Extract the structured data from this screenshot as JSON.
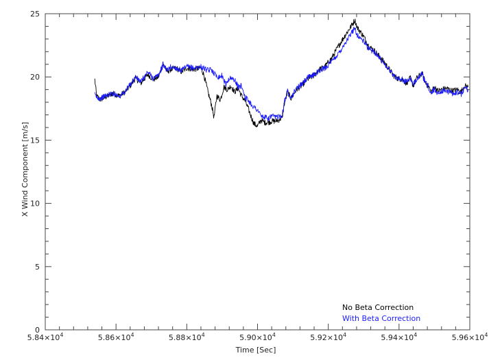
{
  "chart_data": {
    "type": "line",
    "title": "",
    "xlabel": "Time [Sec]",
    "ylabel": "X Wind Component [m/s]",
    "xlim": [
      58400,
      59600
    ],
    "ylim": [
      0,
      25
    ],
    "x_ticks": [
      {
        "value": 58400,
        "mantissa": "5.84",
        "power": "4"
      },
      {
        "value": 58600,
        "mantissa": "5.86",
        "power": "4"
      },
      {
        "value": 58800,
        "mantissa": "5.88",
        "power": "4"
      },
      {
        "value": 59000,
        "mantissa": "5.90",
        "power": "4"
      },
      {
        "value": 59200,
        "mantissa": "5.92",
        "power": "4"
      },
      {
        "value": 59400,
        "mantissa": "5.94",
        "power": "4"
      },
      {
        "value": 59600,
        "mantissa": "5.96",
        "power": "4"
      }
    ],
    "y_ticks": [
      0,
      5,
      10,
      15,
      20,
      25
    ],
    "grid": false,
    "legend_position": "bottom-right",
    "series": [
      {
        "name": "No Beta Correction",
        "color": "#000000",
        "x": [
          58540,
          58545,
          58555,
          58570,
          58590,
          58610,
          58625,
          58640,
          58655,
          58670,
          58690,
          58705,
          58720,
          58733,
          58745,
          58755,
          58770,
          58785,
          58800,
          58820,
          58840,
          58848,
          58860,
          58870,
          58877,
          58885,
          58895,
          58905,
          58915,
          58925,
          58935,
          58945,
          58955,
          58965,
          58975,
          58980,
          58990,
          59000,
          59010,
          59020,
          59030,
          59040,
          59050,
          59060,
          59070,
          59075,
          59080,
          59085,
          59095,
          59110,
          59125,
          59140,
          59160,
          59175,
          59190,
          59210,
          59230,
          59250,
          59262,
          59275,
          59282,
          59290,
          59300,
          59315,
          59330,
          59345,
          59360,
          59375,
          59385,
          59395,
          59410,
          59420,
          59432,
          59440,
          59450,
          59465,
          59475,
          59485,
          59490,
          59500,
          59510,
          59520,
          59535,
          59550,
          59565,
          59575,
          59585,
          59595
        ],
        "y": [
          19.8,
          18.5,
          18.2,
          18.4,
          18.7,
          18.5,
          18.8,
          19.3,
          19.9,
          19.5,
          20.2,
          19.8,
          20.0,
          21.0,
          20.4,
          20.6,
          20.7,
          20.4,
          20.7,
          20.6,
          20.7,
          20.2,
          18.8,
          17.8,
          16.8,
          18.5,
          18.2,
          19.2,
          19.0,
          19.3,
          18.8,
          19.1,
          18.5,
          18.1,
          17.4,
          17.0,
          16.3,
          16.1,
          16.6,
          16.4,
          16.4,
          16.5,
          16.5,
          16.6,
          16.8,
          17.8,
          18.3,
          18.8,
          18.3,
          19.0,
          19.3,
          19.8,
          20.1,
          20.6,
          20.8,
          21.5,
          22.5,
          23.4,
          23.9,
          24.5,
          23.9,
          23.6,
          23.2,
          22.4,
          22.1,
          21.6,
          21.1,
          20.5,
          20.1,
          19.9,
          19.8,
          19.5,
          19.9,
          19.3,
          19.9,
          20.3,
          19.5,
          19.2,
          18.8,
          19.2,
          18.9,
          19.0,
          19.1,
          18.9,
          19.0,
          18.8,
          19.3,
          19.2
        ]
      },
      {
        "name": "With Beta Correction",
        "color": "#1a1aff",
        "x": [
          58540,
          58545,
          58555,
          58570,
          58590,
          58610,
          58625,
          58640,
          58655,
          58670,
          58690,
          58705,
          58720,
          58733,
          58745,
          58755,
          58770,
          58785,
          58800,
          58820,
          58840,
          58860,
          58870,
          58880,
          58890,
          58900,
          58910,
          58920,
          58935,
          58945,
          58955,
          58965,
          58975,
          58990,
          59000,
          59010,
          59020,
          59030,
          59040,
          59050,
          59060,
          59070,
          59075,
          59080,
          59085,
          59095,
          59110,
          59125,
          59140,
          59160,
          59175,
          59190,
          59210,
          59230,
          59250,
          59262,
          59275,
          59282,
          59290,
          59300,
          59315,
          59330,
          59345,
          59360,
          59375,
          59385,
          59395,
          59410,
          59420,
          59432,
          59440,
          59450,
          59465,
          59475,
          59485,
          59490,
          59500,
          59510,
          59520,
          59535,
          59550,
          59565,
          59575,
          59585,
          59595
        ],
        "y": [
          18.6,
          18.4,
          18.3,
          18.5,
          18.7,
          18.5,
          18.8,
          19.4,
          20.0,
          19.6,
          20.4,
          19.9,
          20.1,
          21.0,
          20.5,
          20.8,
          20.7,
          20.5,
          20.8,
          20.7,
          20.8,
          20.5,
          20.6,
          20.2,
          20.0,
          20.1,
          19.4,
          19.9,
          19.8,
          19.2,
          19.3,
          18.4,
          18.1,
          17.6,
          17.4,
          16.9,
          16.8,
          16.7,
          16.9,
          16.8,
          16.9,
          17.0,
          18.0,
          18.4,
          18.9,
          18.4,
          19.1,
          19.4,
          19.9,
          20.2,
          20.5,
          20.7,
          21.2,
          21.9,
          22.8,
          23.3,
          23.9,
          23.3,
          23.1,
          22.8,
          22.2,
          22.0,
          21.5,
          21.0,
          20.5,
          20.1,
          19.9,
          19.8,
          19.6,
          19.9,
          19.3,
          19.9,
          20.2,
          19.5,
          19.1,
          18.7,
          19.0,
          18.7,
          18.9,
          18.9,
          18.7,
          18.8,
          18.6,
          19.1,
          19.0
        ]
      }
    ],
    "legend": [
      {
        "label": "No Beta Correction",
        "color": "#000000"
      },
      {
        "label": "With Beta Correction",
        "color": "#1a1aff"
      }
    ]
  }
}
